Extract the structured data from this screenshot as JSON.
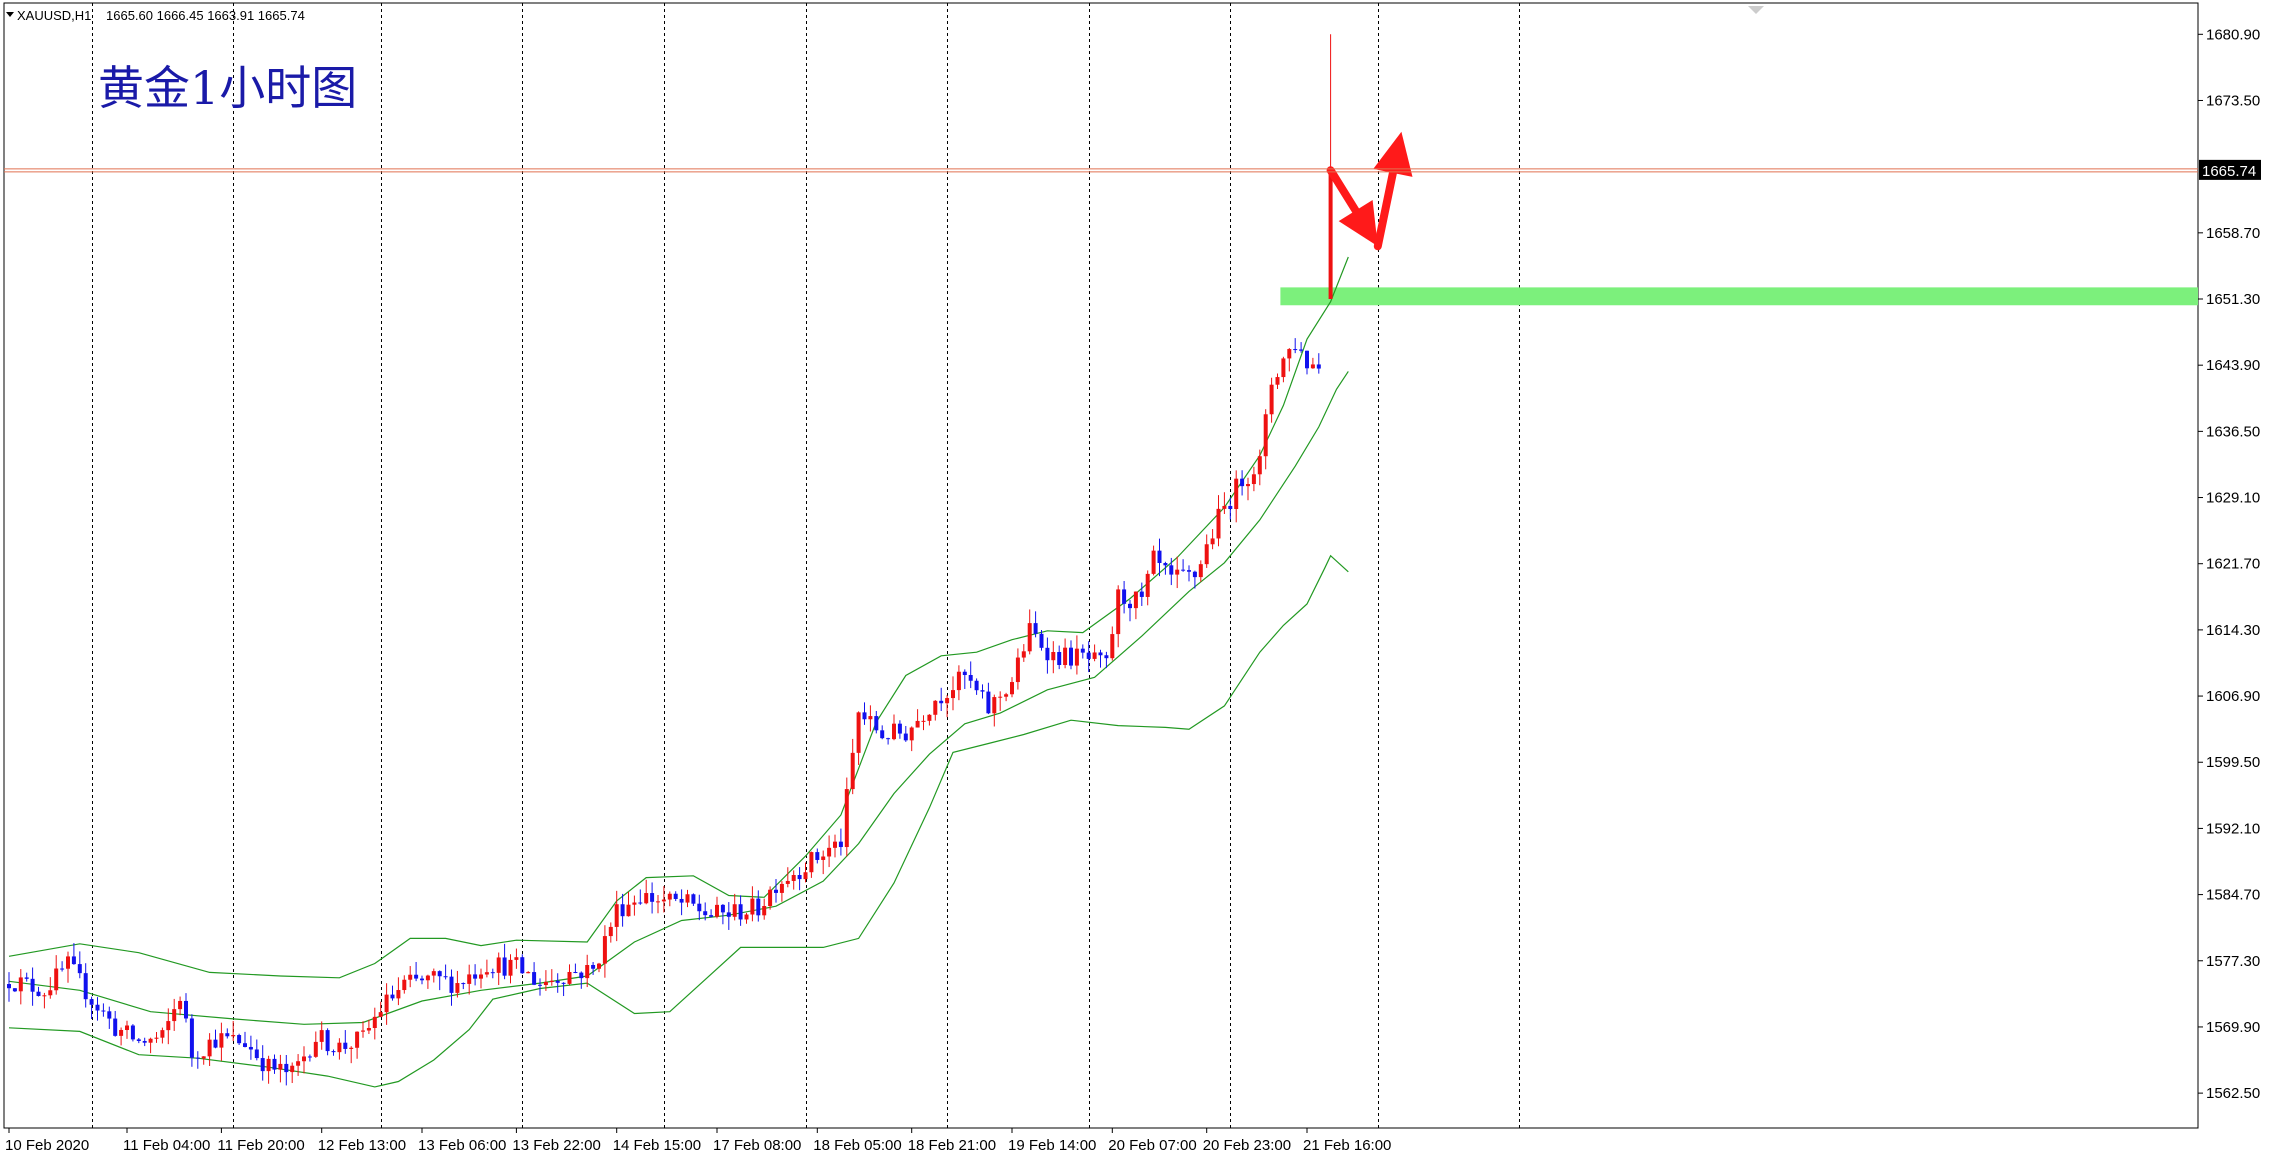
{
  "header": {
    "symbol": "XAUUSD,H1",
    "ohlc": "1665.60 1666.45 1663.91 1665.74"
  },
  "annotation": "黄金1小时图",
  "colors": {
    "bull": "#ee1111",
    "bear": "#1111ee",
    "wick": "#333333",
    "band": "#229922",
    "current_line": "#e07050",
    "zone": "#7cf07c",
    "arrow": "#ff1a1a",
    "grid": "#000000"
  },
  "chart_data": {
    "type": "candlestick",
    "title": "黄金1小时图",
    "instrument": "XAUUSD,H1",
    "ylim": [
      1558.6,
      1684.4
    ],
    "y_ticks": [
      "1680.90",
      "1673.50",
      "1658.70",
      "1651.30",
      "1643.90",
      "1636.50",
      "1629.10",
      "1621.70",
      "1614.30",
      "1606.90",
      "1599.50",
      "1592.10",
      "1584.70",
      "1577.30",
      "1569.90",
      "1562.50"
    ],
    "current_price": "1665.74",
    "x_ticks": [
      {
        "label": "10 Feb 2020",
        "index": 0
      },
      {
        "label": "11 Feb 04:00",
        "index": 20
      },
      {
        "label": "11 Feb 20:00",
        "index": 36
      },
      {
        "label": "12 Feb 13:00",
        "index": 53
      },
      {
        "label": "13 Feb 06:00",
        "index": 70
      },
      {
        "label": "13 Feb 22:00",
        "index": 86
      },
      {
        "label": "14 Feb 15:00",
        "index": 103
      },
      {
        "label": "17 Feb 08:00",
        "index": 120
      },
      {
        "label": "18 Feb 05:00",
        "index": 137
      },
      {
        "label": "18 Feb 21:00",
        "index": 153
      },
      {
        "label": "19 Feb 14:00",
        "index": 170
      },
      {
        "label": "20 Feb 07:00",
        "index": 187
      },
      {
        "label": "20 Feb 23:00",
        "index": 203
      },
      {
        "label": "21 Feb 16:00",
        "index": 220
      }
    ],
    "grid_vlines": [
      14,
      38,
      63,
      87,
      111,
      135,
      159,
      183,
      207,
      232,
      256
    ],
    "close_path": [
      [
        0,
        1575.2
      ],
      [
        6,
        1574.0
      ],
      [
        10,
        1576.8
      ],
      [
        14,
        1573.0
      ],
      [
        18,
        1569.8
      ],
      [
        22,
        1568.2
      ],
      [
        26,
        1568.6
      ],
      [
        29,
        1573.5
      ],
      [
        31,
        1566.8
      ],
      [
        35,
        1568.6
      ],
      [
        40,
        1568.2
      ],
      [
        44,
        1565.4
      ],
      [
        48,
        1564.6
      ],
      [
        52,
        1568.8
      ],
      [
        56,
        1567.6
      ],
      [
        60,
        1568.6
      ],
      [
        63,
        1572.0
      ],
      [
        67,
        1574.6
      ],
      [
        72,
        1575.2
      ],
      [
        76,
        1574.8
      ],
      [
        81,
        1577.0
      ],
      [
        86,
        1576.6
      ],
      [
        90,
        1574.8
      ],
      [
        95,
        1576.0
      ],
      [
        99,
        1576.2
      ],
      [
        103,
        1583.0
      ],
      [
        107,
        1584.6
      ],
      [
        111,
        1584.0
      ],
      [
        115,
        1583.6
      ],
      [
        119,
        1582.4
      ],
      [
        122,
        1582.6
      ],
      [
        127,
        1583.2
      ],
      [
        130,
        1586.0
      ],
      [
        135,
        1588.0
      ],
      [
        141,
        1590.6
      ],
      [
        144,
        1605.0
      ],
      [
        148,
        1602.6
      ],
      [
        152,
        1602.8
      ],
      [
        157,
        1606.6
      ],
      [
        162,
        1609.0
      ],
      [
        166,
        1605.4
      ],
      [
        170,
        1608.6
      ],
      [
        173,
        1614.2
      ],
      [
        177,
        1611.4
      ],
      [
        182,
        1611.2
      ],
      [
        186,
        1610.2
      ],
      [
        188,
        1618.0
      ],
      [
        192,
        1617.4
      ],
      [
        194,
        1622.0
      ],
      [
        197,
        1619.8
      ],
      [
        201,
        1620.4
      ],
      [
        205,
        1626.8
      ],
      [
        209,
        1631.2
      ],
      [
        212,
        1633.0
      ],
      [
        214,
        1642.0
      ],
      [
        216,
        1644.6
      ],
      [
        218,
        1646.4
      ],
      [
        220,
        1644.2
      ],
      [
        222,
        1643.8
      ]
    ],
    "spike_candle": {
      "index": 224,
      "open": 1651.3,
      "high": 1680.9,
      "low": 1651.3,
      "close": 1665.74
    },
    "upper_band": [
      [
        0,
        1577.8
      ],
      [
        12,
        1579.2
      ],
      [
        22,
        1578.2
      ],
      [
        34,
        1576.0
      ],
      [
        46,
        1575.6
      ],
      [
        56,
        1575.4
      ],
      [
        62,
        1577.0
      ],
      [
        68,
        1579.8
      ],
      [
        74,
        1579.8
      ],
      [
        80,
        1579.0
      ],
      [
        86,
        1579.6
      ],
      [
        98,
        1579.4
      ],
      [
        103,
        1584.0
      ],
      [
        108,
        1586.6
      ],
      [
        116,
        1586.8
      ],
      [
        122,
        1584.6
      ],
      [
        128,
        1584.4
      ],
      [
        135,
        1589.0
      ],
      [
        141,
        1593.6
      ],
      [
        147,
        1604.0
      ],
      [
        152,
        1609.2
      ],
      [
        158,
        1611.4
      ],
      [
        164,
        1611.8
      ],
      [
        170,
        1613.2
      ],
      [
        176,
        1614.2
      ],
      [
        182,
        1614.0
      ],
      [
        190,
        1617.8
      ],
      [
        198,
        1622.4
      ],
      [
        206,
        1628.0
      ],
      [
        212,
        1633.8
      ],
      [
        216,
        1639.4
      ],
      [
        220,
        1646.8
      ],
      [
        224,
        1651.0
      ],
      [
        227,
        1656.0
      ]
    ],
    "middle_band": [
      [
        0,
        1575.0
      ],
      [
        12,
        1574.0
      ],
      [
        24,
        1571.6
      ],
      [
        38,
        1570.8
      ],
      [
        50,
        1570.2
      ],
      [
        60,
        1570.4
      ],
      [
        70,
        1572.8
      ],
      [
        80,
        1574.0
      ],
      [
        90,
        1574.8
      ],
      [
        98,
        1575.6
      ],
      [
        106,
        1579.4
      ],
      [
        114,
        1581.8
      ],
      [
        122,
        1582.4
      ],
      [
        130,
        1583.4
      ],
      [
        138,
        1586.2
      ],
      [
        144,
        1590.4
      ],
      [
        150,
        1596.0
      ],
      [
        156,
        1600.4
      ],
      [
        162,
        1603.8
      ],
      [
        168,
        1605.0
      ],
      [
        176,
        1607.6
      ],
      [
        184,
        1609.0
      ],
      [
        192,
        1613.6
      ],
      [
        200,
        1618.6
      ],
      [
        206,
        1621.8
      ],
      [
        212,
        1626.6
      ],
      [
        218,
        1632.6
      ],
      [
        222,
        1637.0
      ],
      [
        225,
        1641.2
      ],
      [
        227,
        1643.2
      ]
    ],
    "lower_band": [
      [
        0,
        1569.8
      ],
      [
        12,
        1569.4
      ],
      [
        22,
        1566.8
      ],
      [
        32,
        1566.4
      ],
      [
        44,
        1565.4
      ],
      [
        54,
        1564.4
      ],
      [
        62,
        1563.2
      ],
      [
        66,
        1563.8
      ],
      [
        72,
        1566.2
      ],
      [
        78,
        1569.6
      ],
      [
        82,
        1573.0
      ],
      [
        90,
        1574.2
      ],
      [
        98,
        1574.8
      ],
      [
        106,
        1571.4
      ],
      [
        112,
        1571.6
      ],
      [
        118,
        1575.2
      ],
      [
        124,
        1578.8
      ],
      [
        130,
        1578.8
      ],
      [
        138,
        1578.8
      ],
      [
        144,
        1579.8
      ],
      [
        150,
        1586.0
      ],
      [
        156,
        1594.4
      ],
      [
        160,
        1600.6
      ],
      [
        166,
        1601.6
      ],
      [
        172,
        1602.6
      ],
      [
        180,
        1604.2
      ],
      [
        188,
        1603.6
      ],
      [
        196,
        1603.4
      ],
      [
        200,
        1603.2
      ],
      [
        206,
        1605.8
      ],
      [
        212,
        1611.8
      ],
      [
        216,
        1614.8
      ],
      [
        220,
        1617.2
      ],
      [
        223,
        1621.2
      ],
      [
        224,
        1622.6
      ],
      [
        227,
        1620.8
      ]
    ],
    "zone": {
      "from_index": 216,
      "low": 1650.6,
      "high": 1652.6
    },
    "arrows": [
      {
        "from": [
          224,
          1665.7
        ],
        "to": [
          232,
          1657.2
        ]
      },
      {
        "from": [
          232,
          1657.2
        ],
        "to": [
          236,
          1670.0
        ]
      }
    ],
    "grid": true
  }
}
